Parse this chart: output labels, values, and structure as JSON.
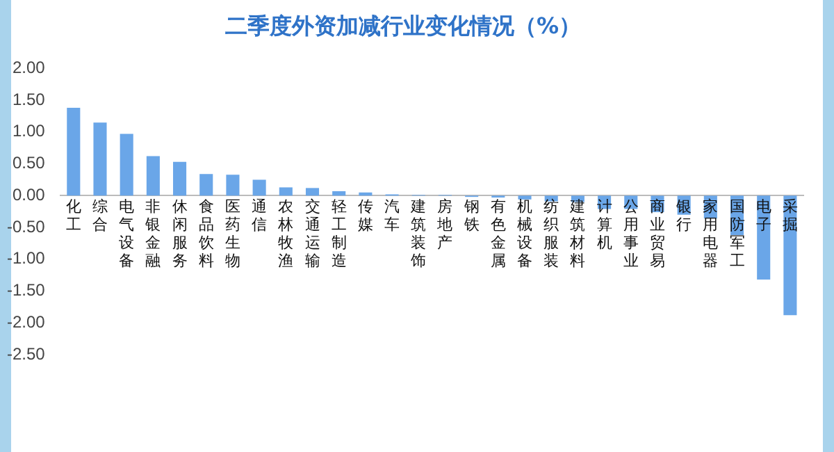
{
  "chart_data": {
    "type": "bar",
    "title": "二季度外资加减行业变化情况（%）",
    "categories": [
      "化工",
      "综合",
      "电气设备",
      "非银金融",
      "休闲服务",
      "食品饮料",
      "医药生物",
      "通信",
      "农林牧渔",
      "交通运输",
      "轻工制造",
      "传媒",
      "汽车",
      "建筑装饰",
      "房地产",
      "钢铁",
      "有色金属",
      "机械设备",
      "纺织服装",
      "建筑材料",
      "计算机",
      "公用事业",
      "商业贸易",
      "银行",
      "家用电器",
      "国防军工",
      "电子",
      "采掘"
    ],
    "values": [
      1.38,
      1.15,
      0.97,
      0.62,
      0.53,
      0.34,
      0.33,
      0.25,
      0.13,
      0.12,
      0.07,
      0.05,
      0.02,
      0.01,
      0.01,
      -0.02,
      -0.03,
      -0.06,
      -0.09,
      -0.1,
      -0.21,
      -0.21,
      -0.26,
      -0.3,
      -0.36,
      -0.62,
      -1.32,
      -1.88
    ],
    "color": "#6aa6e8",
    "ylim": [
      -2.5,
      2.0
    ],
    "yticks": [
      {
        "value": -2.5,
        "label": "-2.50"
      },
      {
        "value": -2,
        "label": "-2.00"
      },
      {
        "value": -1.5,
        "label": "-1.50"
      },
      {
        "value": -1,
        "label": "-1.00"
      },
      {
        "value": -0.5,
        "label": "-0.50"
      },
      {
        "value": 0,
        "label": "0.00"
      },
      {
        "value": 0.5,
        "label": "0.50"
      },
      {
        "value": 1,
        "label": "1.00"
      },
      {
        "value": 1.5,
        "label": "1.50"
      },
      {
        "value": 2,
        "label": "2.00"
      }
    ],
    "grid": false,
    "legend": false
  }
}
